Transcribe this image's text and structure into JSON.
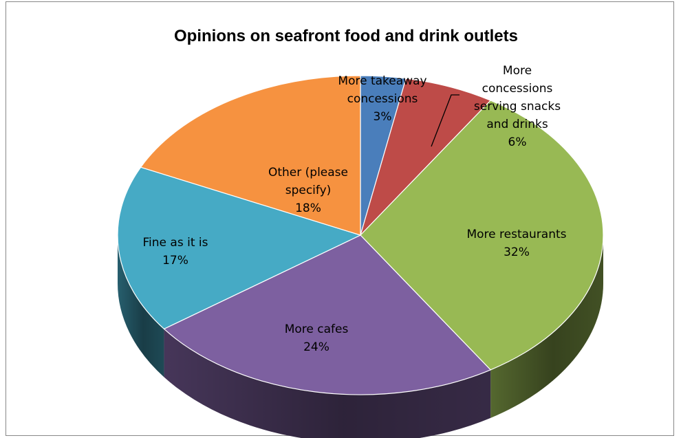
{
  "chart_data": {
    "type": "pie",
    "style": "3d",
    "title": "Opinions on seafront food and drink outlets",
    "slices": [
      {
        "label_lines": [
          "More takeaway",
          "concessions"
        ],
        "percent_label": "3%",
        "value": 3,
        "color": "#4a7ebb"
      },
      {
        "label_lines": [
          "More",
          "concessions",
          "serving snacks",
          "and drinks"
        ],
        "percent_label": "6%",
        "value": 6,
        "color": "#be4b48"
      },
      {
        "label_lines": [
          "More restaurants"
        ],
        "percent_label": "32%",
        "value": 32,
        "color": "#98b954"
      },
      {
        "label_lines": [
          "More cafes"
        ],
        "percent_label": "24%",
        "value": 24,
        "color": "#7d60a0"
      },
      {
        "label_lines": [
          "Fine as it is"
        ],
        "percent_label": "17%",
        "value": 17,
        "color": "#46aac5"
      },
      {
        "label_lines": [
          "Other (please",
          "specify)"
        ],
        "percent_label": "18%",
        "value": 18,
        "color": "#f69240"
      }
    ]
  }
}
